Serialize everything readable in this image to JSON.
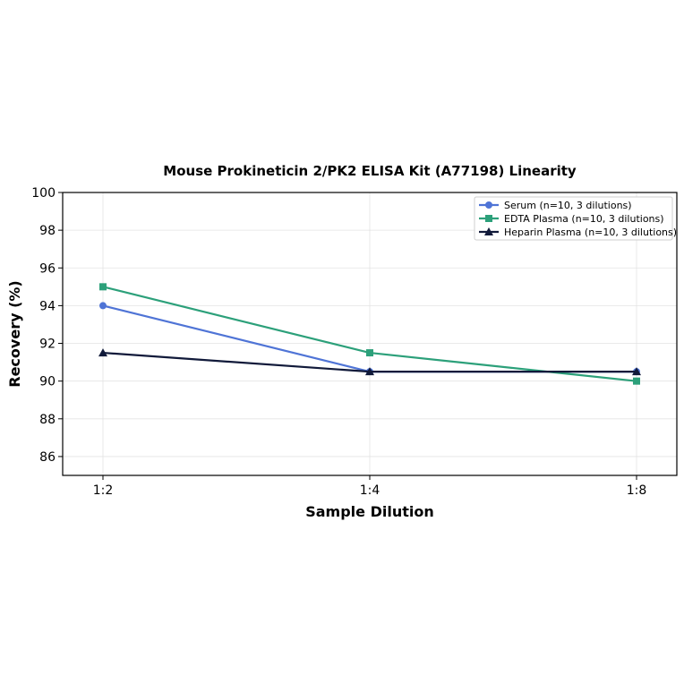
{
  "chart_data": {
    "type": "line",
    "title": "Mouse Prokineticin 2/PK2 ELISA Kit (A77198) Linearity",
    "xlabel": "Sample Dilution",
    "ylabel": "Recovery (%)",
    "categories": [
      "1:2",
      "1:4",
      "1:8"
    ],
    "ylim": [
      85,
      100
    ],
    "yticks": [
      "86",
      "88",
      "90",
      "92",
      "94",
      "96",
      "98",
      "100"
    ],
    "grid": true,
    "legend_position": "top-right",
    "series": [
      {
        "name": "Serum (n=10, 3 dilutions)",
        "values": [
          94,
          90.5,
          90.5
        ],
        "color": "#4f74d6",
        "marker": "circle"
      },
      {
        "name": "EDTA Plasma (n=10, 3 dilutions)",
        "values": [
          95,
          91.5,
          90
        ],
        "color": "#2ca07a",
        "marker": "square"
      },
      {
        "name": "Heparin Plasma (n=10, 3 dilutions)",
        "values": [
          91.5,
          90.5,
          90.5
        ],
        "color": "#111a3a",
        "marker": "triangle"
      }
    ]
  }
}
